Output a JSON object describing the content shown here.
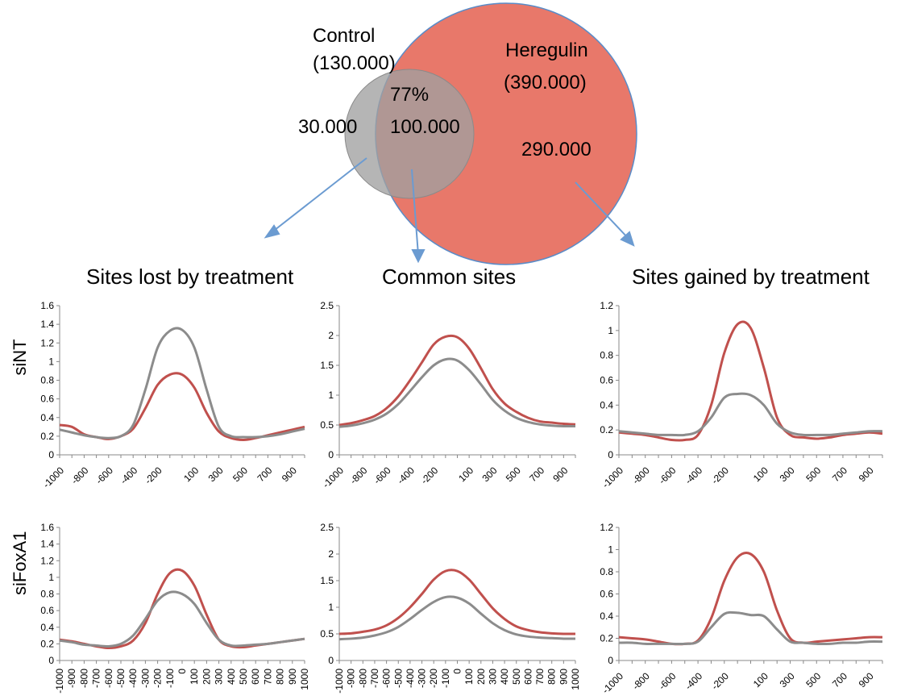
{
  "venn": {
    "control_label": "Control",
    "control_count": "(130.000)",
    "heregulin_label": "Heregulin",
    "heregulin_count": "(390.000)",
    "overlap_percent": "77%",
    "overlap_count": "100.000",
    "control_only_count": "30.000",
    "heregulin_only_count": "290.000",
    "colors": {
      "control": "#9e9e9e",
      "heregulin": "#e8786a",
      "overlap": "#a6716a",
      "arrow": "#6b9bd1"
    }
  },
  "columns": [
    "Sites lost by treatment",
    "Common sites",
    "Sites gained by treatment"
  ],
  "rows": [
    "siNT",
    "siFoxA1"
  ],
  "chart_data": [
    {
      "type": "line",
      "row": "siNT",
      "column": "Sites lost by treatment",
      "x": [
        -1000,
        -900,
        -800,
        -700,
        -600,
        -500,
        -400,
        -300,
        -200,
        -100,
        0,
        100,
        200,
        300,
        400,
        500,
        600,
        700,
        800,
        900,
        1000
      ],
      "x_tick_labels": [
        "-1000",
        "-800",
        "-600",
        "-400",
        "-200",
        "100",
        "300",
        "500",
        "700",
        "900"
      ],
      "ylim": [
        0,
        1.6
      ],
      "y_ticks": [
        "0",
        "0.2",
        "0.4",
        "0.6",
        "0.8",
        "1",
        "1.2",
        "1.4",
        "1.6"
      ],
      "series": [
        {
          "color": "#c0504d",
          "values": [
            0.32,
            0.3,
            0.22,
            0.19,
            0.17,
            0.2,
            0.28,
            0.5,
            0.75,
            0.86,
            0.86,
            0.72,
            0.45,
            0.25,
            0.18,
            0.16,
            0.18,
            0.21,
            0.24,
            0.27,
            0.3
          ]
        },
        {
          "color": "#8c8c8c",
          "values": [
            0.27,
            0.24,
            0.21,
            0.19,
            0.18,
            0.2,
            0.32,
            0.7,
            1.15,
            1.33,
            1.34,
            1.15,
            0.7,
            0.3,
            0.2,
            0.19,
            0.19,
            0.2,
            0.22,
            0.25,
            0.28
          ]
        }
      ]
    },
    {
      "type": "line",
      "row": "siNT",
      "column": "Common sites",
      "x": [
        -1000,
        -900,
        -800,
        -700,
        -600,
        -500,
        -400,
        -300,
        -200,
        -100,
        0,
        100,
        200,
        300,
        400,
        500,
        600,
        700,
        800,
        900,
        1000
      ],
      "x_tick_labels": [
        "-1000",
        "-800",
        "-600",
        "-400",
        "-200",
        "100",
        "300",
        "500",
        "700",
        "900"
      ],
      "ylim": [
        0,
        2.5
      ],
      "y_ticks": [
        "0",
        "0.5",
        "1",
        "1.5",
        "2",
        "2.5"
      ],
      "series": [
        {
          "color": "#c0504d",
          "values": [
            0.5,
            0.53,
            0.58,
            0.65,
            0.78,
            0.98,
            1.25,
            1.55,
            1.85,
            1.98,
            1.97,
            1.78,
            1.45,
            1.1,
            0.86,
            0.72,
            0.62,
            0.56,
            0.54,
            0.52,
            0.51
          ]
        },
        {
          "color": "#8c8c8c",
          "values": [
            0.47,
            0.49,
            0.53,
            0.59,
            0.69,
            0.85,
            1.07,
            1.3,
            1.5,
            1.6,
            1.58,
            1.42,
            1.18,
            0.92,
            0.74,
            0.62,
            0.55,
            0.51,
            0.49,
            0.48,
            0.48
          ]
        }
      ]
    },
    {
      "type": "line",
      "row": "siNT",
      "column": "Sites gained by treatment",
      "x": [
        -1000,
        -900,
        -800,
        -700,
        -600,
        -500,
        -400,
        -300,
        -200,
        -100,
        0,
        100,
        200,
        300,
        400,
        500,
        600,
        700,
        800,
        900,
        1000
      ],
      "x_tick_labels": [
        "-1000",
        "-800",
        "-600",
        "-400",
        "-200",
        "100",
        "300",
        "500",
        "700",
        "900"
      ],
      "ylim": [
        0,
        1.2
      ],
      "y_ticks": [
        "0",
        "0.2",
        "0.4",
        "0.6",
        "0.8",
        "1",
        "1.2"
      ],
      "series": [
        {
          "color": "#c0504d",
          "values": [
            0.18,
            0.17,
            0.16,
            0.14,
            0.12,
            0.12,
            0.16,
            0.4,
            0.82,
            1.05,
            1.02,
            0.7,
            0.3,
            0.16,
            0.14,
            0.13,
            0.14,
            0.16,
            0.17,
            0.18,
            0.17
          ]
        },
        {
          "color": "#8c8c8c",
          "values": [
            0.19,
            0.18,
            0.17,
            0.16,
            0.16,
            0.16,
            0.19,
            0.3,
            0.46,
            0.49,
            0.48,
            0.4,
            0.25,
            0.18,
            0.16,
            0.16,
            0.16,
            0.17,
            0.18,
            0.19,
            0.19
          ]
        }
      ]
    },
    {
      "type": "line",
      "row": "siFoxA1",
      "column": "Sites lost by treatment",
      "x": [
        -1000,
        -900,
        -800,
        -700,
        -600,
        -500,
        -400,
        -300,
        -200,
        -100,
        0,
        100,
        200,
        300,
        400,
        500,
        600,
        700,
        800,
        900,
        1000
      ],
      "x_tick_labels": [
        "-1000",
        "-900",
        "-800",
        "-700",
        "-600",
        "-500",
        "-400",
        "-300",
        "-200",
        "-100",
        "0",
        "100",
        "200",
        "300",
        "400",
        "500",
        "600",
        "700",
        "800",
        "900",
        "1000"
      ],
      "ylim": [
        0,
        1.6
      ],
      "y_ticks": [
        "0",
        "0.2",
        "0.4",
        "0.6",
        "0.8",
        "1",
        "1.2",
        "1.4",
        "1.6"
      ],
      "series": [
        {
          "color": "#c0504d",
          "values": [
            0.25,
            0.23,
            0.2,
            0.17,
            0.15,
            0.17,
            0.24,
            0.45,
            0.8,
            1.05,
            1.08,
            0.9,
            0.55,
            0.25,
            0.17,
            0.16,
            0.18,
            0.2,
            0.22,
            0.24,
            0.26
          ]
        },
        {
          "color": "#8c8c8c",
          "values": [
            0.24,
            0.22,
            0.19,
            0.18,
            0.17,
            0.2,
            0.3,
            0.5,
            0.72,
            0.82,
            0.8,
            0.68,
            0.45,
            0.25,
            0.18,
            0.18,
            0.19,
            0.2,
            0.22,
            0.24,
            0.26
          ]
        }
      ]
    },
    {
      "type": "line",
      "row": "siFoxA1",
      "column": "Common sites",
      "x": [
        -1000,
        -900,
        -800,
        -700,
        -600,
        -500,
        -400,
        -300,
        -200,
        -100,
        0,
        100,
        200,
        300,
        400,
        500,
        600,
        700,
        800,
        900,
        1000
      ],
      "x_tick_labels": [
        "-1000",
        "-900",
        "-800",
        "-700",
        "-600",
        "-500",
        "-400",
        "-300",
        "-200",
        "-100",
        "0",
        "100",
        "200",
        "300",
        "400",
        "500",
        "600",
        "700",
        "800",
        "900",
        "1000"
      ],
      "ylim": [
        0,
        2.5
      ],
      "y_ticks": [
        "0",
        "0.5",
        "1",
        "1.5",
        "2",
        "2.5"
      ],
      "series": [
        {
          "color": "#c0504d",
          "values": [
            0.5,
            0.51,
            0.54,
            0.58,
            0.66,
            0.8,
            1.0,
            1.25,
            1.52,
            1.68,
            1.68,
            1.52,
            1.25,
            0.98,
            0.78,
            0.64,
            0.57,
            0.53,
            0.51,
            0.5,
            0.5
          ]
        },
        {
          "color": "#8c8c8c",
          "values": [
            0.4,
            0.41,
            0.43,
            0.47,
            0.53,
            0.63,
            0.78,
            0.95,
            1.1,
            1.19,
            1.18,
            1.07,
            0.88,
            0.7,
            0.57,
            0.49,
            0.45,
            0.43,
            0.42,
            0.41,
            0.41
          ]
        }
      ]
    },
    {
      "type": "line",
      "row": "siFoxA1",
      "column": "Sites gained by treatment",
      "x": [
        -1000,
        -900,
        -800,
        -700,
        -600,
        -500,
        -400,
        -300,
        -200,
        -100,
        0,
        100,
        200,
        300,
        400,
        500,
        600,
        700,
        800,
        900,
        1000
      ],
      "x_tick_labels": [
        "-1000",
        "-800",
        "-600",
        "-400",
        "-200",
        "100",
        "300",
        "500",
        "700",
        "900"
      ],
      "ylim": [
        0,
        1.2
      ],
      "y_ticks": [
        "0",
        "0.2",
        "0.4",
        "0.6",
        "0.8",
        "1",
        "1.2"
      ],
      "series": [
        {
          "color": "#c0504d",
          "values": [
            0.21,
            0.2,
            0.19,
            0.17,
            0.15,
            0.15,
            0.18,
            0.38,
            0.72,
            0.93,
            0.96,
            0.8,
            0.45,
            0.2,
            0.16,
            0.17,
            0.18,
            0.19,
            0.2,
            0.21,
            0.21
          ]
        },
        {
          "color": "#8c8c8c",
          "values": [
            0.16,
            0.16,
            0.15,
            0.15,
            0.15,
            0.15,
            0.17,
            0.3,
            0.42,
            0.43,
            0.41,
            0.4,
            0.28,
            0.17,
            0.16,
            0.15,
            0.15,
            0.16,
            0.16,
            0.17,
            0.17
          ]
        }
      ]
    }
  ]
}
